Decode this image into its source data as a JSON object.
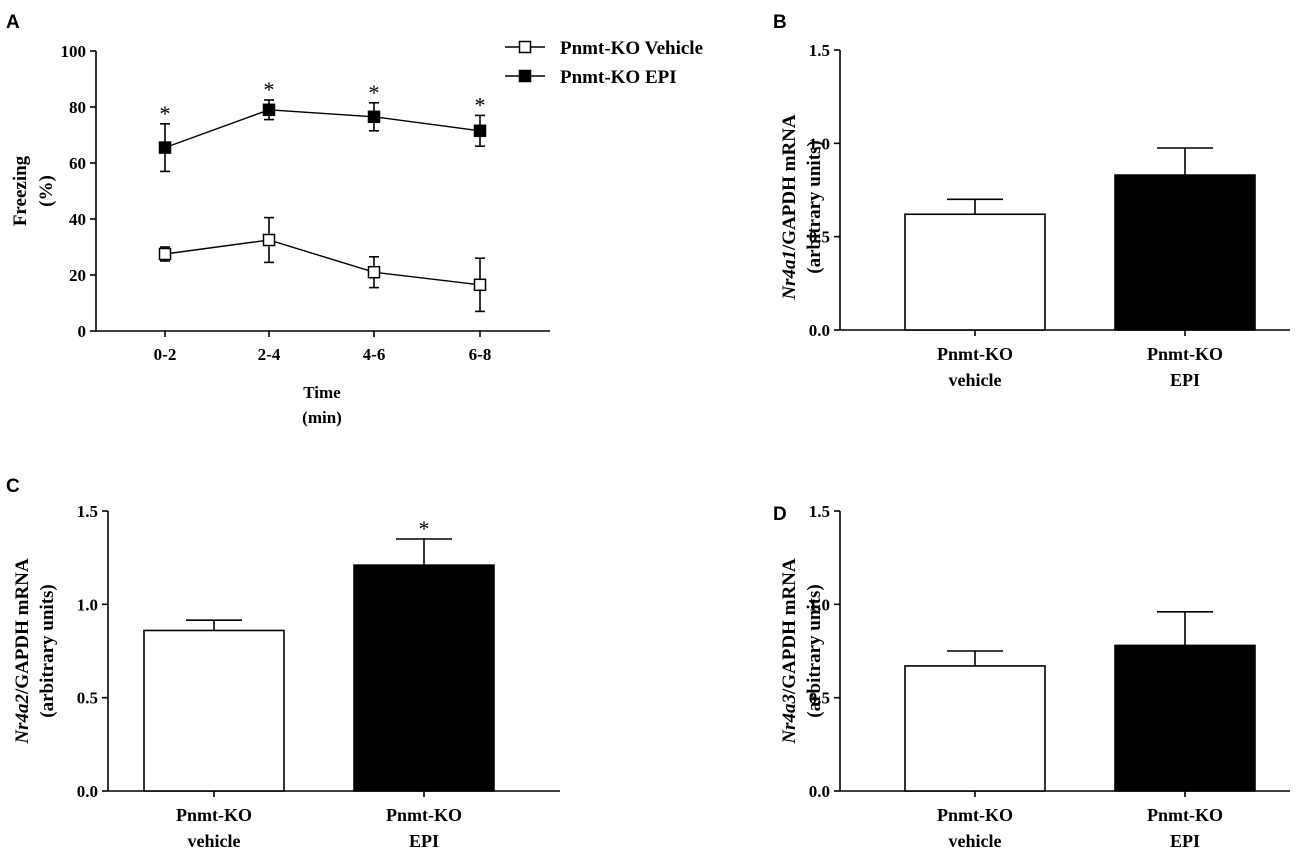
{
  "figure": {
    "chart_data": [
      {
        "panel": "A",
        "type": "line",
        "title": "",
        "xlabel": [
          "Time",
          "(min)"
        ],
        "ylabel": [
          "Freezing",
          "(%)"
        ],
        "categories": [
          "0-2",
          "2-4",
          "4-6",
          "6-8"
        ],
        "ylim": [
          0,
          100
        ],
        "yticks": [
          "0",
          "20",
          "40",
          "60",
          "80",
          "100"
        ],
        "series": [
          {
            "name": "Pnmt-KO Vehicle",
            "marker": "open-square",
            "values": [
              27.5,
              32.5,
              21,
              16.5
            ],
            "errors": [
              2.5,
              8,
              5.5,
              9.5
            ],
            "sig": [
              "",
              "",
              "",
              ""
            ]
          },
          {
            "name": "Pnmt-KO EPI",
            "marker": "filled-square",
            "values": [
              65.5,
              79,
              76.5,
              71.5
            ],
            "errors": [
              8.5,
              3.5,
              5,
              5.5
            ],
            "sig": [
              "*",
              "*",
              "*",
              "*"
            ]
          }
        ],
        "legend": "top-right"
      },
      {
        "panel": "B",
        "type": "bar",
        "title": "",
        "ylabel": {
          "gene": "Nr4a1",
          "suffix": "/GAPDH mRNA",
          "units": "(arbitrary units)"
        },
        "categories": [
          [
            "Pnmt-KO",
            "vehicle"
          ],
          [
            "Pnmt-KO",
            "EPI"
          ]
        ],
        "ylim": [
          0,
          1.5
        ],
        "yticks": [
          "0.0",
          "0.5",
          "1.0",
          "1.5"
        ],
        "values": [
          0.62,
          0.83
        ],
        "errors": [
          0.08,
          0.145
        ],
        "fills": [
          "#ffffff",
          "#000000"
        ],
        "sig": [
          "",
          ""
        ]
      },
      {
        "panel": "C",
        "type": "bar",
        "title": "",
        "ylabel": {
          "gene": "Nr4a2",
          "suffix": "/GAPDH mRNA",
          "units": "(arbitrary units)"
        },
        "categories": [
          [
            "Pnmt-KO",
            "vehicle"
          ],
          [
            "Pnmt-KO",
            "EPI"
          ]
        ],
        "ylim": [
          0,
          1.5
        ],
        "yticks": [
          "0.0",
          "0.5",
          "1.0",
          "1.5"
        ],
        "values": [
          0.86,
          1.21
        ],
        "errors": [
          0.055,
          0.14
        ],
        "fills": [
          "#ffffff",
          "#000000"
        ],
        "sig": [
          "",
          "*"
        ]
      },
      {
        "panel": "D",
        "type": "bar",
        "title": "",
        "ylabel": {
          "gene": "Nr4a3",
          "suffix": "/GAPDH mRNA",
          "units": "(arbitrary units)"
        },
        "categories": [
          [
            "Pnmt-KO",
            "vehicle"
          ],
          [
            "Pnmt-KO",
            "EPI"
          ]
        ],
        "ylim": [
          0,
          1.5
        ],
        "yticks": [
          "0.0",
          "0.5",
          "1.0",
          "1.5"
        ],
        "values": [
          0.67,
          0.78
        ],
        "errors": [
          0.08,
          0.18
        ],
        "fills": [
          "#ffffff",
          "#000000"
        ],
        "sig": [
          "",
          ""
        ]
      }
    ]
  }
}
